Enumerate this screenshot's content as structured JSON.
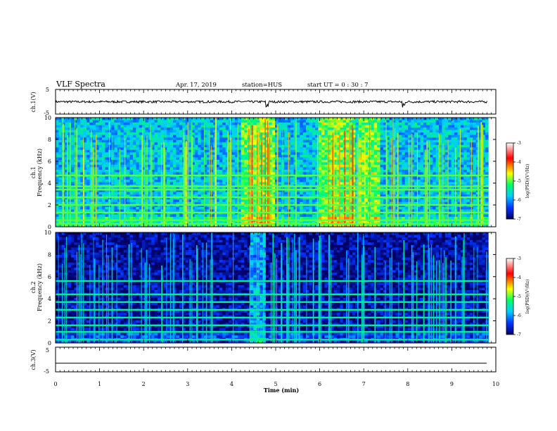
{
  "header": {
    "title": "VLF Spectra",
    "date": "Apr. 17, 2019",
    "station": "station=HUS",
    "start": "start  UT =   0 : 30 : 7"
  },
  "colorbar": {
    "label": "log(PSD)(V²/Hz)",
    "ticks": [
      "-3",
      "-4",
      "-5",
      "-6",
      "-7"
    ],
    "colors": [
      "#ffffff",
      "#ff0000",
      "#ffff00",
      "#00ff66",
      "#00ccff",
      "#0033ff",
      "#000066"
    ]
  },
  "chart_data": [
    {
      "type": "line",
      "name": "ch1_waveform",
      "ylabel": "ch.1(V)",
      "ylim": [
        -5,
        5
      ],
      "y_ticks": [
        "5",
        "-5"
      ],
      "xlim": [
        0,
        10
      ],
      "baseline_value": 0,
      "spike_x": [
        4.8,
        7.9
      ],
      "grid": false
    },
    {
      "type": "heatmap",
      "name": "ch1_spectrogram",
      "ylabel": "ch.1\nFrequency (kHz)",
      "xlim": [
        0,
        9.83
      ],
      "ylim": [
        0,
        10
      ],
      "y_ticks": [
        "10",
        "8",
        "6",
        "4",
        "2",
        "0"
      ],
      "background_level": -5.8,
      "tone_lines_khz": [
        0.25,
        0.6,
        1.3,
        2.0,
        2.7,
        3.4,
        3.7,
        4.7
      ],
      "tone_level": -5.0,
      "bright_regions_min": [
        [
          4.2,
          5.0
        ],
        [
          6.0,
          6.8
        ],
        [
          6.9,
          7.4
        ]
      ]
    },
    {
      "type": "heatmap",
      "name": "ch2_spectrogram",
      "ylabel": "ch.2\nFrequency (kHz)",
      "xlim": [
        0,
        9.83
      ],
      "ylim": [
        0,
        10
      ],
      "y_ticks": [
        "10",
        "8",
        "6",
        "4",
        "2",
        "0"
      ],
      "background_level": -6.8,
      "tone_lines_khz": [
        0.3,
        1.0,
        1.6,
        2.3,
        3.0,
        3.7,
        4.4,
        5.6
      ],
      "tone_level": -5.4,
      "bright_regions_min": [
        [
          4.4,
          4.8
        ]
      ]
    },
    {
      "type": "line",
      "name": "ch3_waveform",
      "ylabel": "ch.3(V)",
      "ylim": [
        -5,
        5
      ],
      "y_ticks": [
        "5",
        "-5"
      ],
      "xlim": [
        0,
        10
      ],
      "baseline_value": -1.5,
      "xlabel": "Time  (min)",
      "x_ticks": [
        "0",
        "1",
        "2",
        "3",
        "4",
        "5",
        "6",
        "7",
        "8",
        "9",
        "10"
      ],
      "grid": false
    }
  ]
}
